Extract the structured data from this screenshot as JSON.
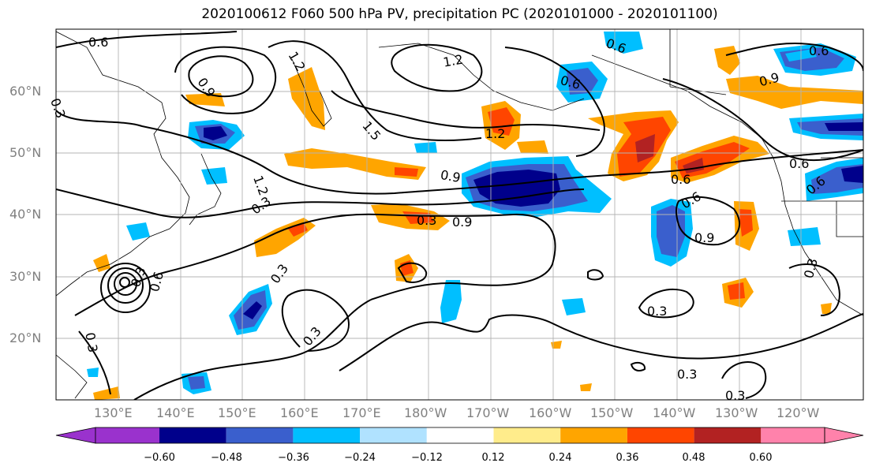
{
  "title": "2020100612 F060 500 hPa PV, precipitation PC (2020101000 - 2020101100)",
  "lat_labels": [
    "60°N",
    "50°N",
    "40°N",
    "30°N",
    "20°N"
  ],
  "lon_labels": [
    "130°E",
    "140°E",
    "150°E",
    "160°E",
    "170°E",
    "180°W",
    "170°W",
    "160°W",
    "150°W",
    "140°W",
    "130°W",
    "120°W"
  ],
  "colorbar": {
    "tick_labels": [
      "−0.60",
      "−0.48",
      "−0.36",
      "−0.24",
      "−0.12",
      "0.12",
      "0.24",
      "0.36",
      "0.48",
      "0.60"
    ],
    "colors": [
      "#9a32cd",
      "#00008b",
      "#3a5fcd",
      "#00bfff",
      "#b0e2ff",
      "#ffffff",
      "#ffec8b",
      "#ffa500",
      "#ff4500",
      "#b22222",
      "#ff82ab"
    ]
  },
  "contour_labels": [
    "0.6",
    "0.3",
    "1.2",
    "0.9",
    "1.2",
    "1.5",
    "1.2",
    "0.6",
    "0.9",
    "0.6",
    "0.9",
    "0.3",
    "1.2",
    "0.9",
    "0.3",
    "0.3",
    "0.6",
    "0.6",
    "0.9",
    "0.6",
    "0.6",
    "0.3",
    "0.3",
    "0.3",
    "0.3",
    "0.3",
    "0.3",
    "0.6",
    "0.3",
    "0.6"
  ]
}
